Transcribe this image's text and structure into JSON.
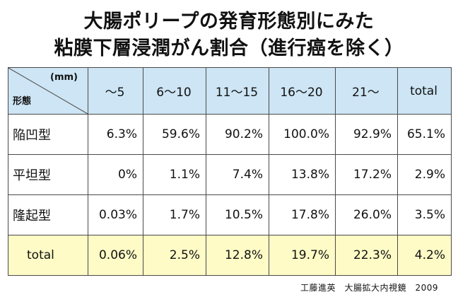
{
  "title": {
    "line1": "大腸ポリープの発育形態別にみた",
    "line2": "粘膜下層浸潤がん割合（進行癌を除く）"
  },
  "table": {
    "corner": {
      "unit": "(mm)",
      "label": "形態"
    },
    "columns": [
      "～5",
      "6～10",
      "11～15",
      "16～20",
      "21～",
      "total"
    ],
    "rows": [
      {
        "label": "陥凹型",
        "values": [
          "6.3%",
          "59.6%",
          "90.2%",
          "100.0%",
          "92.9%",
          "65.1%"
        ]
      },
      {
        "label": "平坦型",
        "values": [
          "0%",
          "1.1%",
          "7.4%",
          "13.8%",
          "17.2%",
          "2.9%"
        ]
      },
      {
        "label": "隆起型",
        "values": [
          "0.03%",
          "1.7%",
          "10.5%",
          "17.8%",
          "26.0%",
          "3.5%"
        ]
      }
    ],
    "total": {
      "label": "total",
      "values": [
        "0.06%",
        "2.5%",
        "12.8%",
        "19.7%",
        "22.3%",
        "4.2%"
      ]
    }
  },
  "source": "工藤進英　大腸拡大内視鏡　2009",
  "colors": {
    "header_bg": "#cde5f4",
    "total_bg": "#fefbc6",
    "border": "#4a4a4a"
  }
}
